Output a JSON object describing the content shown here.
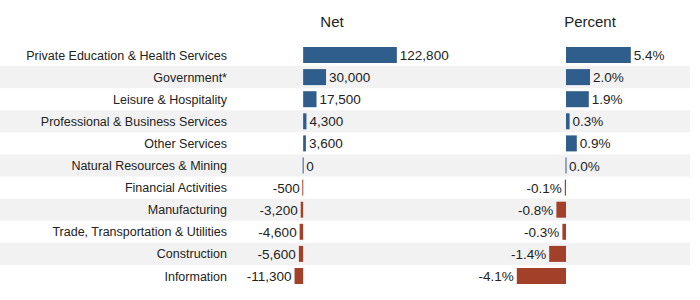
{
  "chart_data": [
    {
      "type": "bar",
      "title": "Net",
      "orientation": "horizontal",
      "data_labels": true,
      "tick_labels": false,
      "grid": false,
      "categories": [
        "Private Education & Health Services",
        "Government*",
        "Leisure & Hospitality",
        "Professional & Business Services",
        "Other Services",
        "Natural Resources & Mining",
        "Financial Activities",
        "Manufacturing",
        "Trade, Transportation & Utilities",
        "Construction",
        "Information"
      ],
      "values": [
        122800,
        30000,
        17500,
        4300,
        3600,
        0,
        -500,
        -3200,
        -4600,
        -5600,
        -11300
      ],
      "value_labels": [
        "122,800",
        "30,000",
        "17,500",
        "4,300",
        "3,600",
        "0",
        "-500",
        "-3,200",
        "-4,600",
        "-5,600",
        "-11,300"
      ],
      "colors": [
        "#2f5d8c",
        "#2f5d8c",
        "#2f5d8c",
        "#2f5d8c",
        "#2f5d8c",
        "#2f5d8c",
        "#a3402a",
        "#a3402a",
        "#a3402a",
        "#a3402a",
        "#a3402a"
      ],
      "xlim": [
        -12000,
        123000
      ]
    },
    {
      "type": "bar",
      "title": "Percent",
      "orientation": "horizontal",
      "data_labels": true,
      "tick_labels": false,
      "grid": false,
      "categories": [
        null,
        null,
        null,
        null,
        null,
        null,
        null,
        null,
        null,
        null,
        null
      ],
      "values": [
        5.4,
        2.0,
        1.9,
        0.3,
        0.9,
        0.0,
        -0.1,
        -0.8,
        -0.3,
        -1.4,
        -4.1
      ],
      "value_labels": [
        "5.4%",
        "2.0%",
        "1.9%",
        "0.3%",
        "0.9%",
        "0.0%",
        "-0.1%",
        "-0.8%",
        "-0.3%",
        "-1.4%",
        "-4.1%"
      ],
      "colors": [
        "#2f5d8c",
        "#2f5d8c",
        "#2f5d8c",
        "#2f5d8c",
        "#2f5d8c",
        "#2f5d8c",
        "#a3402a",
        "#a3402a",
        "#a3402a",
        "#a3402a",
        "#a3402a"
      ],
      "xlim": [
        -4.5,
        6
      ]
    }
  ]
}
